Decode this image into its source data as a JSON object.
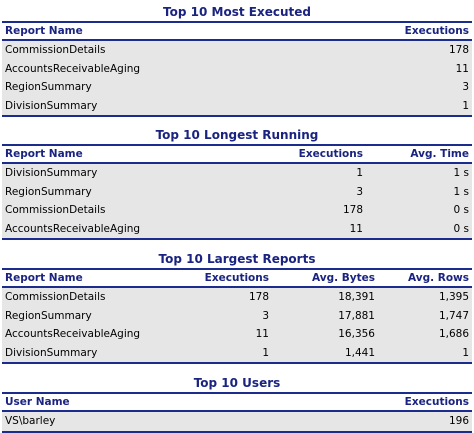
{
  "sections": {
    "most_executed": {
      "title": "Top 10 Most Executed",
      "headers": {
        "report_name": "Report Name",
        "executions": "Executions"
      },
      "rows": [
        {
          "name": "CommissionDetails",
          "executions": "178"
        },
        {
          "name": "AccountsReceivableAging",
          "executions": "11"
        },
        {
          "name": "RegionSummary",
          "executions": "3"
        },
        {
          "name": "DivisionSummary",
          "executions": "1"
        }
      ]
    },
    "longest_running": {
      "title": "Top 10 Longest Running",
      "headers": {
        "report_name": "Report Name",
        "executions": "Executions",
        "avg_time": "Avg. Time"
      },
      "rows": [
        {
          "name": "DivisionSummary",
          "executions": "1",
          "avg_time": "1 s"
        },
        {
          "name": "RegionSummary",
          "executions": "3",
          "avg_time": "1 s"
        },
        {
          "name": "CommissionDetails",
          "executions": "178",
          "avg_time": "0 s"
        },
        {
          "name": "AccountsReceivableAging",
          "executions": "11",
          "avg_time": "0 s"
        }
      ]
    },
    "largest_reports": {
      "title": "Top 10 Largest Reports",
      "headers": {
        "report_name": "Report Name",
        "executions": "Executions",
        "avg_bytes": "Avg. Bytes",
        "avg_rows": "Avg. Rows"
      },
      "rows": [
        {
          "name": "CommissionDetails",
          "executions": "178",
          "avg_bytes": "18,391",
          "avg_rows": "1,395"
        },
        {
          "name": "RegionSummary",
          "executions": "3",
          "avg_bytes": "17,881",
          "avg_rows": "1,747"
        },
        {
          "name": "AccountsReceivableAging",
          "executions": "11",
          "avg_bytes": "16,356",
          "avg_rows": "1,686"
        },
        {
          "name": "DivisionSummary",
          "executions": "1",
          "avg_bytes": "1,441",
          "avg_rows": "1"
        }
      ]
    },
    "users": {
      "title": "Top 10 Users",
      "headers": {
        "user_name": "User Name",
        "executions": "Executions"
      },
      "rows": [
        {
          "name": "VS\\barley",
          "executions": "196"
        }
      ]
    }
  }
}
